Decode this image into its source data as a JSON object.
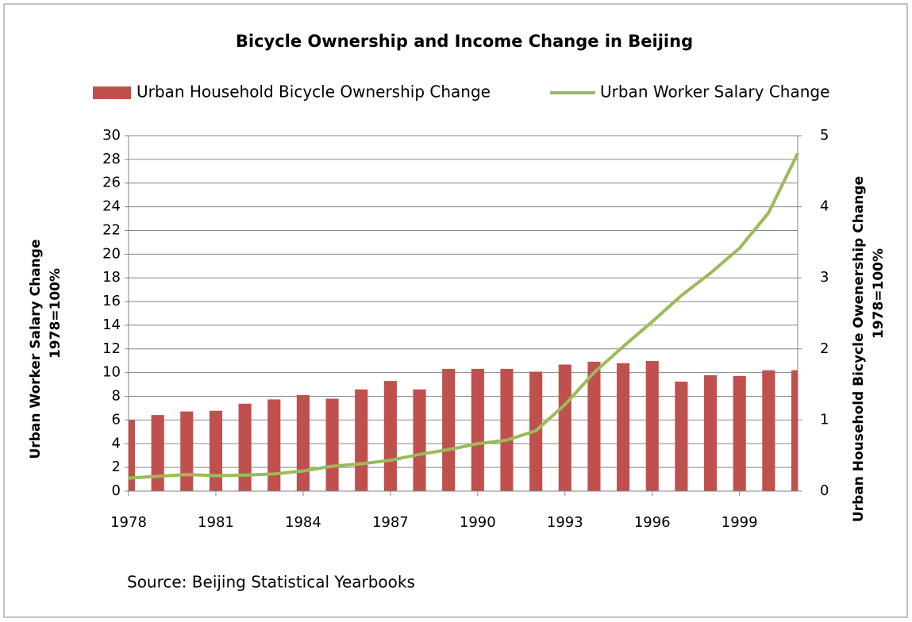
{
  "chart_data": {
    "type": "bar+line",
    "title": "Bicycle Ownership and Income Change in Beijing",
    "y_label": [
      "Urban Worker Salary Change",
      "1978=100%"
    ],
    "y2_label": [
      "Urban Household Bicycle Owenership Change",
      "1978=100%"
    ],
    "source": "Source: Beijing Statistical Yearbooks",
    "x": [
      1978,
      1979,
      1980,
      1981,
      1982,
      1983,
      1984,
      1985,
      1986,
      1987,
      1988,
      1989,
      1990,
      1991,
      1992,
      1993,
      1994,
      1995,
      1996,
      1997,
      1998,
      1999,
      2000,
      2001
    ],
    "xlim": [
      1978,
      2001
    ],
    "xticks": [
      1978,
      1981,
      1984,
      1987,
      1990,
      1993,
      1996,
      1999
    ],
    "ylim": [
      0,
      30
    ],
    "yticks": [
      0,
      2,
      4,
      6,
      8,
      10,
      12,
      14,
      16,
      18,
      20,
      22,
      24,
      26,
      28,
      30
    ],
    "y2lim": [
      0,
      5
    ],
    "y2ticks": [
      0,
      1,
      2,
      3,
      4,
      5
    ],
    "grid": true,
    "legend": "top",
    "series": [
      {
        "name": "Urban Household Bicycle Ownership Change",
        "type": "bar",
        "axis": "y2",
        "color": "#c0504d",
        "values": [
          1.0,
          1.07,
          1.12,
          1.13,
          1.23,
          1.29,
          1.35,
          1.3,
          1.43,
          1.55,
          1.43,
          1.72,
          1.72,
          1.72,
          1.68,
          1.78,
          1.82,
          1.8,
          1.83,
          1.54,
          1.63,
          1.62,
          1.7,
          1.7
        ]
      },
      {
        "name": "Urban Worker Salary Change",
        "type": "line",
        "axis": "y",
        "color": "#9bbb59",
        "values": [
          1.1,
          1.25,
          1.4,
          1.3,
          1.35,
          1.45,
          1.7,
          2.1,
          2.3,
          2.6,
          3.1,
          3.5,
          4.0,
          4.3,
          5.1,
          7.3,
          10.0,
          12.2,
          14.3,
          16.5,
          18.4,
          20.5,
          23.5,
          28.5
        ]
      }
    ]
  }
}
